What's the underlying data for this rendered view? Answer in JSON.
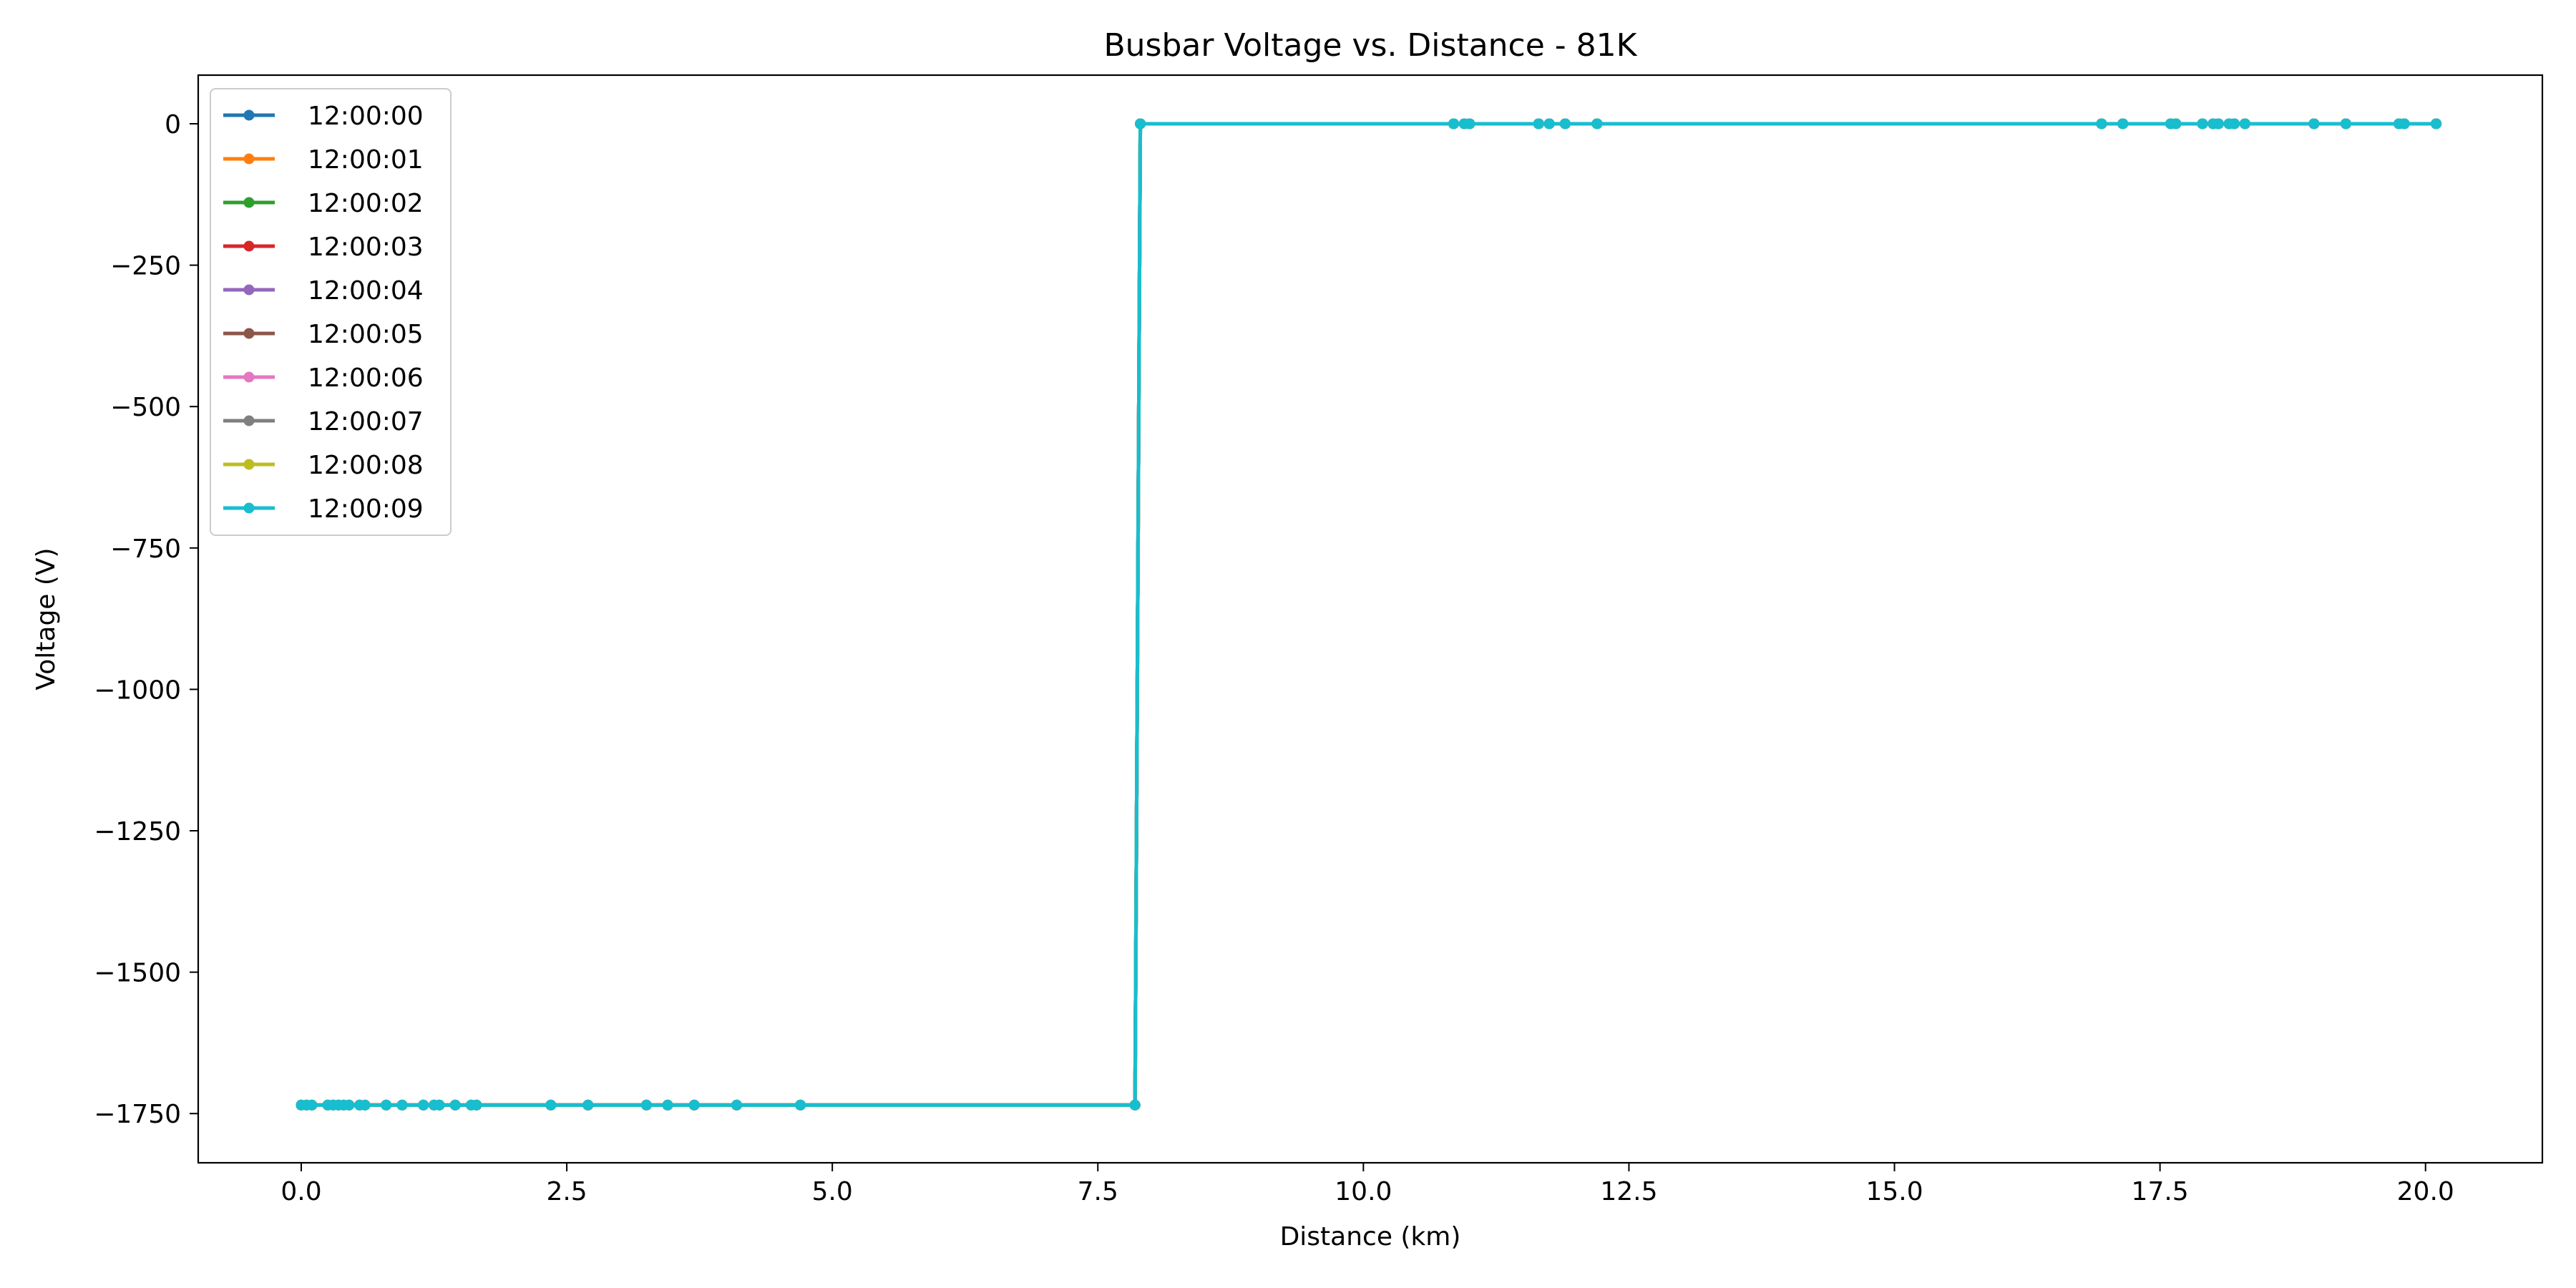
{
  "chart_data": {
    "type": "line",
    "title": "Busbar Voltage vs. Distance - 81K",
    "xlabel": "Distance (km)",
    "ylabel": "Voltage (V)",
    "xlim": [
      -0.97,
      21.1
    ],
    "ylim": [
      -1837,
      86
    ],
    "xticks": [
      0.0,
      2.5,
      5.0,
      7.5,
      10.0,
      12.5,
      15.0,
      17.5,
      20.0
    ],
    "xtick_labels": [
      "0.0",
      "2.5",
      "5.0",
      "7.5",
      "10.0",
      "12.5",
      "15.0",
      "17.5",
      "20.0"
    ],
    "yticks": [
      0,
      -250,
      -500,
      -750,
      -1000,
      -1250,
      -1500,
      -1750
    ],
    "ytick_labels": [
      "0",
      "−250",
      "−500",
      "−750",
      "−1000",
      "−1250",
      "−1500",
      "−1750"
    ],
    "grid": false,
    "legend_position": "top-left",
    "series_colors": [
      "#1f77b4",
      "#ff7f0e",
      "#2ca02c",
      "#d62728",
      "#9467bd",
      "#8c564b",
      "#e377c2",
      "#7f7f7f",
      "#bcbd22",
      "#17becf"
    ],
    "x": [
      0.0,
      0.05,
      0.1,
      0.25,
      0.3,
      0.35,
      0.4,
      0.45,
      0.55,
      0.6,
      0.8,
      0.95,
      1.15,
      1.25,
      1.3,
      1.45,
      1.6,
      1.65,
      2.35,
      2.7,
      3.25,
      3.45,
      3.7,
      4.1,
      4.7,
      7.85,
      7.9,
      10.85,
      10.95,
      11.0,
      11.65,
      11.75,
      11.9,
      12.2,
      16.95,
      17.15,
      17.6,
      17.65,
      17.9,
      18.0,
      18.05,
      18.15,
      18.2,
      18.3,
      18.95,
      19.25,
      19.75,
      19.8,
      20.1
    ],
    "y": [
      -1735,
      -1735,
      -1735,
      -1735,
      -1735,
      -1735,
      -1735,
      -1735,
      -1735,
      -1735,
      -1735,
      -1735,
      -1735,
      -1735,
      -1735,
      -1735,
      -1735,
      -1735,
      -1735,
      -1735,
      -1735,
      -1735,
      -1735,
      -1735,
      -1735,
      -1735,
      0,
      0,
      0,
      0,
      0,
      0,
      0,
      0,
      0,
      0,
      0,
      0,
      0,
      0,
      0,
      0,
      0,
      0,
      0,
      0,
      0,
      0,
      0
    ],
    "series": [
      {
        "name": "12:00:00"
      },
      {
        "name": "12:00:01"
      },
      {
        "name": "12:00:02"
      },
      {
        "name": "12:00:03"
      },
      {
        "name": "12:00:04"
      },
      {
        "name": "12:00:05"
      },
      {
        "name": "12:00:06"
      },
      {
        "name": "12:00:07"
      },
      {
        "name": "12:00:08"
      },
      {
        "name": "12:00:09"
      }
    ],
    "series_note": "All series share identical x/y values; they overlap, so only the last series (12:00:09) is visible."
  }
}
